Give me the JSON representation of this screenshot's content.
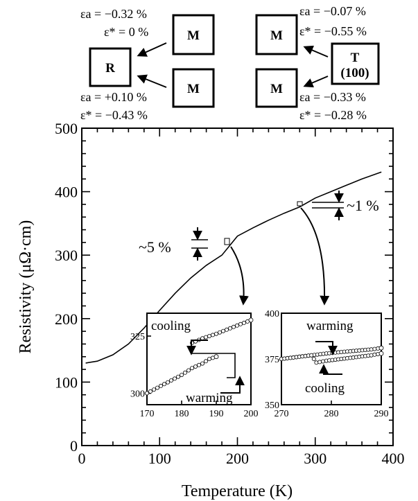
{
  "phase_diagram": {
    "boxes": {
      "R": "R",
      "M_upper_left": "M",
      "M_lower_left": "M",
      "M_upper_right": "M",
      "M_lower_right": "M",
      "T_letter": "T",
      "T_orientation": "(100)"
    },
    "strains": {
      "left_top_ea": "εa = −0.32 %",
      "left_top_estar": "ε* = 0 %",
      "left_bottom_ea": "εa = +0.10 %",
      "left_bottom_estar": "ε* = −0.43 %",
      "right_top_ea": "εa = −0.07 %",
      "right_top_estar": "ε* = −0.55 %",
      "right_bottom_ea": "εa = −0.33 %",
      "right_bottom_estar": "ε* = −0.28 %"
    }
  },
  "annotations": {
    "jump_left": "~5 %",
    "jump_right": "~1 %"
  },
  "chart_data": [
    {
      "type": "line",
      "title": "",
      "xlabel": "Temperature (K)",
      "ylabel": "Resistivity (μΩ·cm)",
      "xlim": [
        0,
        400
      ],
      "ylim": [
        0,
        500
      ],
      "xticks": [
        "0",
        "100",
        "200",
        "300",
        "400"
      ],
      "yticks": [
        "0",
        "100",
        "200",
        "300",
        "400",
        "500"
      ],
      "grid": false,
      "series": [
        {
          "x": [
            5,
            20,
            40,
            60,
            80,
            100,
            120,
            140,
            160,
            180,
            190,
            200,
            220,
            240,
            260,
            280,
            300,
            320,
            340,
            360,
            385
          ],
          "values": [
            130,
            133,
            143,
            160,
            185,
            213,
            240,
            264,
            284,
            300,
            315,
            330,
            343,
            355,
            366,
            376,
            390,
            400,
            410,
            420,
            431
          ]
        }
      ]
    },
    {
      "type": "scatter",
      "title": "",
      "xlim": [
        170,
        200
      ],
      "ylim": [
        295,
        335
      ],
      "xticks": [
        "170",
        "180",
        "190",
        "200"
      ],
      "yticks": [
        "300",
        "325"
      ],
      "labels": [
        "cooling",
        "warming"
      ],
      "series": [
        {
          "x": [
            170,
            175,
            180,
            183,
            186,
            188,
            190
          ],
          "values": [
            300,
            304,
            308,
            311,
            313,
            315,
            316
          ]
        },
        {
          "x": [
            183,
            186,
            190,
            195,
            200
          ],
          "values": [
            322,
            324,
            326,
            329,
            332
          ]
        }
      ]
    },
    {
      "type": "scatter",
      "title": "",
      "xlim": [
        270,
        290
      ],
      "ylim": [
        350,
        400
      ],
      "xticks": [
        "270",
        "280",
        "290"
      ],
      "yticks": [
        "350",
        "375",
        "400"
      ],
      "labels": [
        "warming",
        "cooling"
      ],
      "series": [
        {
          "x": [
            270,
            273,
            276,
            279,
            282,
            285,
            288,
            290
          ],
          "values": [
            375,
            376,
            377,
            378,
            378.8,
            379.5,
            380.2,
            381
          ]
        },
        {
          "x": [
            270,
            273,
            276,
            277,
            279,
            282,
            285,
            288,
            290
          ],
          "values": [
            375,
            376,
            377,
            373,
            374,
            375,
            376,
            377,
            378
          ]
        }
      ]
    }
  ]
}
